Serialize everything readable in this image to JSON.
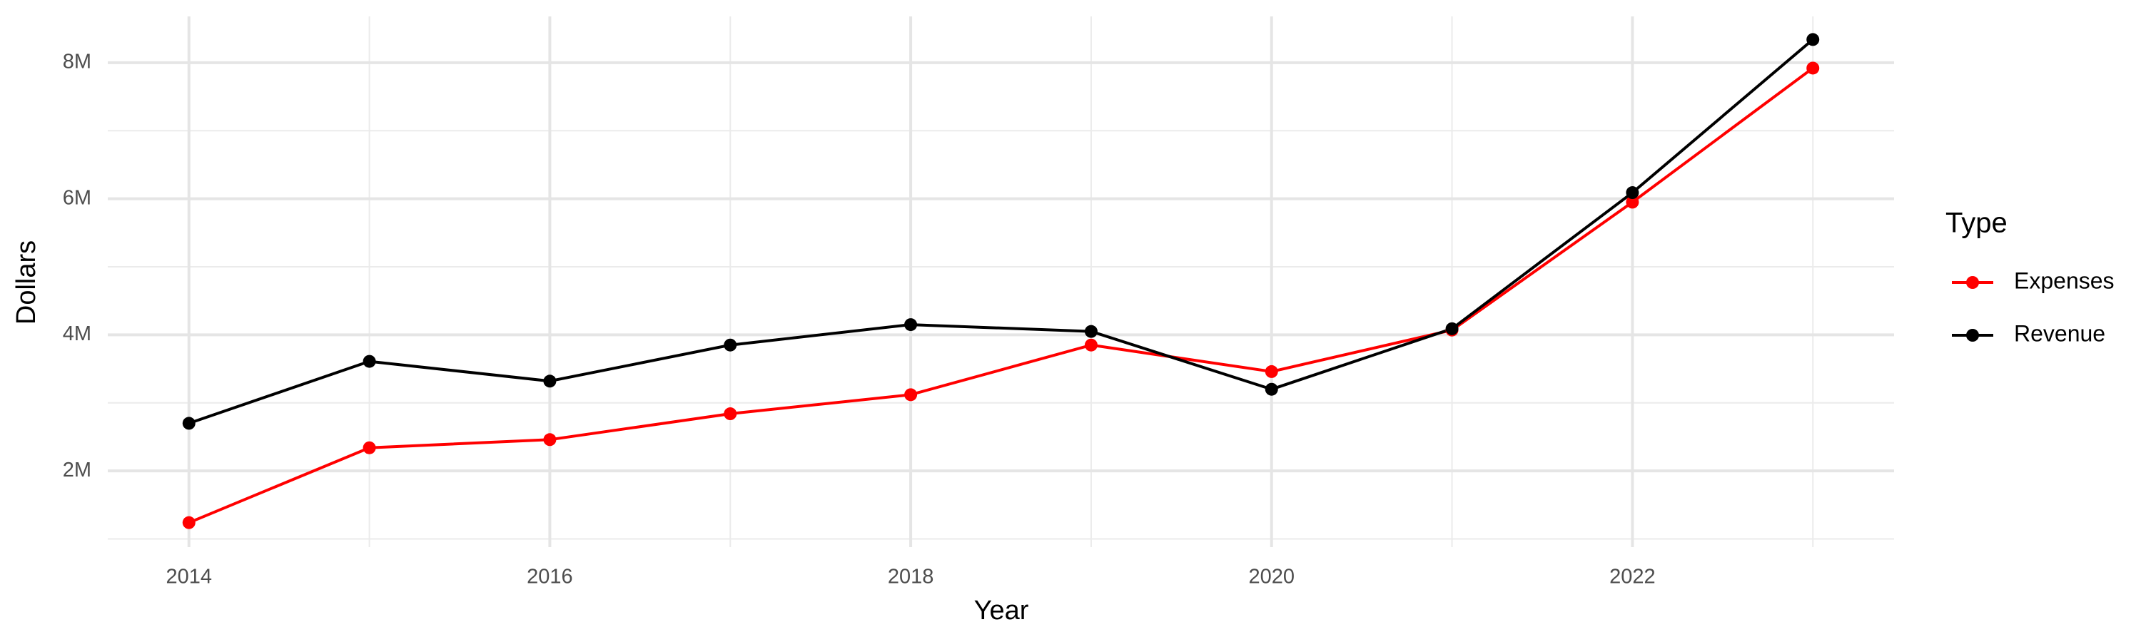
{
  "chart_data": {
    "type": "line",
    "x_label": "Year",
    "y_label": "Dollars",
    "x": [
      2014,
      2015,
      2016,
      2017,
      2018,
      2019,
      2020,
      2021,
      2022,
      2023
    ],
    "series": [
      {
        "name": "Expenses",
        "color": "#ff0000",
        "values": [
          1240000,
          2340000,
          2460000,
          2840000,
          3120000,
          3850000,
          3460000,
          4070000,
          5950000,
          7920000
        ]
      },
      {
        "name": "Revenue",
        "color": "#000000",
        "values": [
          2700000,
          3610000,
          3320000,
          3850000,
          4150000,
          4050000,
          3200000,
          4090000,
          6090000,
          8340000
        ]
      }
    ],
    "xlim": [
      2013.55,
      2023.45
    ],
    "xticks": [
      2014,
      2016,
      2018,
      2020,
      2022
    ],
    "ylim": [
      880000,
      8680000
    ],
    "yticks": [
      {
        "value": 2000000,
        "label": "2M"
      },
      {
        "value": 4000000,
        "label": "4M"
      },
      {
        "value": 6000000,
        "label": "6M"
      },
      {
        "value": 8000000,
        "label": "8M"
      }
    ],
    "grid": true,
    "legend_title": "Type",
    "legend_position": "right"
  }
}
